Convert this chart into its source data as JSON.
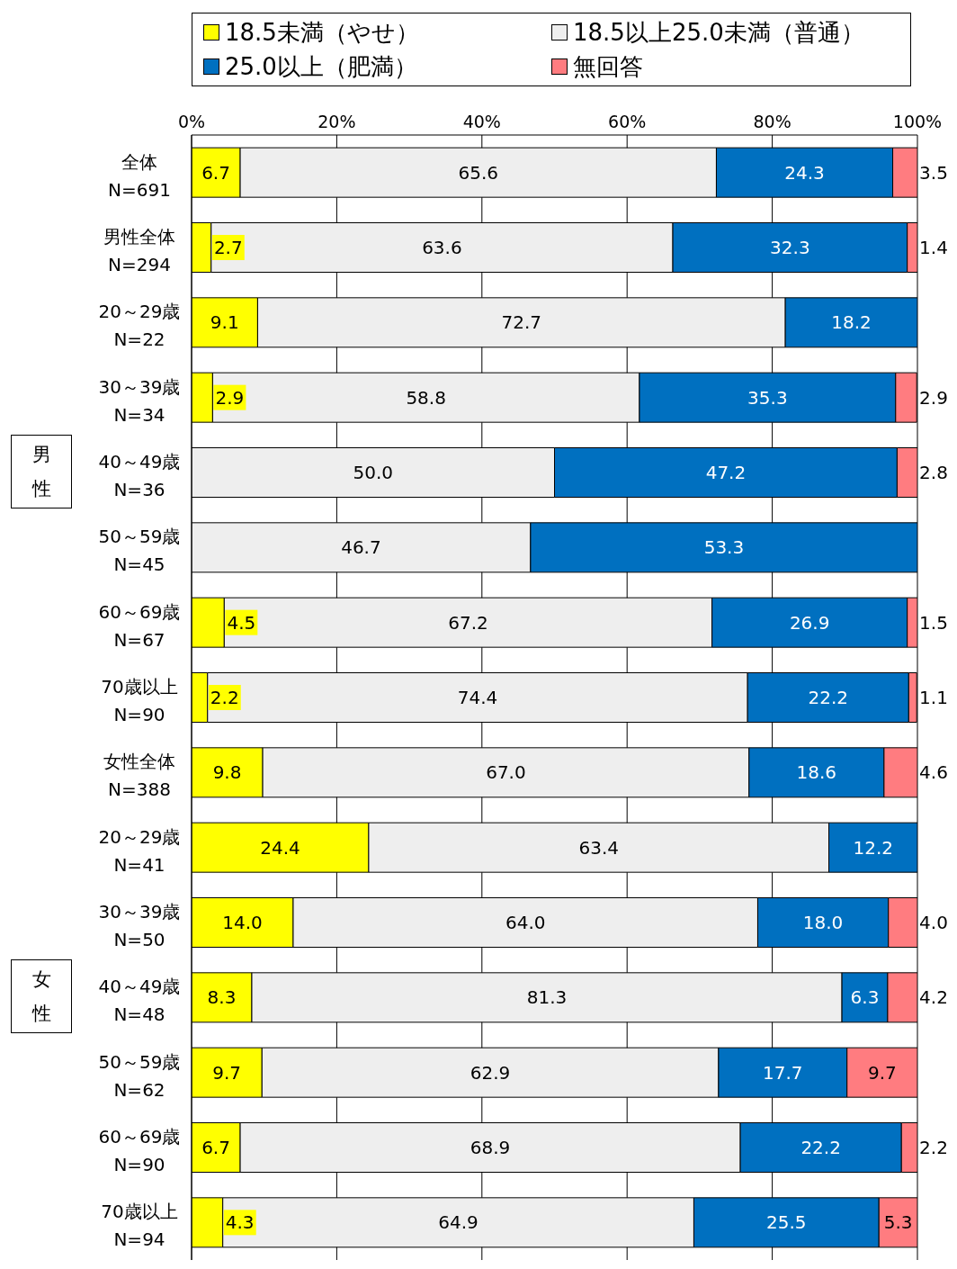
{
  "chart_data": {
    "type": "bar",
    "orientation": "horizontal",
    "stacked": true,
    "categories": [
      "全体\nN=691",
      "男性全体\nN=294",
      "20～29歳\nN=22",
      "30～39歳\nN=34",
      "40～49歳\nN=36",
      "50～59歳\nN=45",
      "60～69歳\nN=67",
      "70歳以上\nN=90",
      "女性全体\nN=388",
      "20～29歳\nN=41",
      "30～39歳\nN=50",
      "40～49歳\nN=48",
      "50～59歳\nN=62",
      "60～69歳\nN=90",
      "70歳以上\nN=94"
    ],
    "series": [
      {
        "name": "18.5未満（やせ）",
        "color": "#ffff00",
        "values": [
          6.7,
          2.7,
          9.1,
          2.9,
          0,
          0,
          4.5,
          2.2,
          9.8,
          24.4,
          14.0,
          8.3,
          9.7,
          6.7,
          4.3
        ],
        "value_labels": [
          "6.7",
          "2.7",
          "9.1",
          "2.9",
          null,
          null,
          "4.5",
          "2.2",
          "9.8",
          "24.4",
          "14.0",
          "8.3",
          "9.7",
          "6.7",
          "4.3"
        ]
      },
      {
        "name": "18.5以上25.0未満（普通）",
        "color": "#eeeeee",
        "values": [
          65.6,
          63.6,
          72.7,
          58.8,
          50.0,
          46.7,
          67.2,
          74.4,
          67.0,
          63.4,
          64.0,
          81.3,
          62.9,
          68.9,
          64.9
        ],
        "value_labels": [
          "65.6",
          "63.6",
          "72.7",
          "58.8",
          "50.0",
          "46.7",
          "67.2",
          "74.4",
          "67.0",
          "63.4",
          "64.0",
          "81.3",
          "62.9",
          "68.9",
          "64.9"
        ]
      },
      {
        "name": "25.0以上（肥満）",
        "color": "#0070c0",
        "values": [
          24.3,
          32.3,
          18.2,
          35.3,
          47.2,
          53.3,
          26.9,
          22.2,
          18.6,
          12.2,
          18.0,
          6.3,
          17.7,
          22.2,
          25.5
        ],
        "value_labels": [
          "24.3",
          "32.3",
          "18.2",
          "35.3",
          "47.2",
          "53.3",
          "26.9",
          "22.2",
          "18.6",
          "12.2",
          "18.0",
          "6.3",
          "17.7",
          "22.2",
          "25.5"
        ]
      },
      {
        "name": "無回答",
        "color": "#ff7c80",
        "values": [
          3.5,
          1.4,
          0,
          2.9,
          2.8,
          0,
          1.5,
          1.1,
          4.6,
          0,
          4.0,
          4.2,
          9.7,
          2.2,
          5.3
        ],
        "value_labels": [
          "3.5",
          "1.4",
          null,
          "2.9",
          "2.8",
          null,
          "1.5",
          "1.1",
          "4.6",
          null,
          "4.0",
          "4.2",
          "9.7",
          "2.2",
          "5.3"
        ]
      }
    ],
    "xlim": [
      0,
      100
    ],
    "xticks": [
      {
        "value": 0,
        "label": "0%"
      },
      {
        "value": 20,
        "label": "20%"
      },
      {
        "value": 40,
        "label": "40%"
      },
      {
        "value": 60,
        "label": "60%"
      },
      {
        "value": 80,
        "label": "80%"
      },
      {
        "value": 100,
        "label": "100%"
      }
    ],
    "grid": "x",
    "legend": "top",
    "annotations": [
      "男性",
      "女性"
    ]
  }
}
